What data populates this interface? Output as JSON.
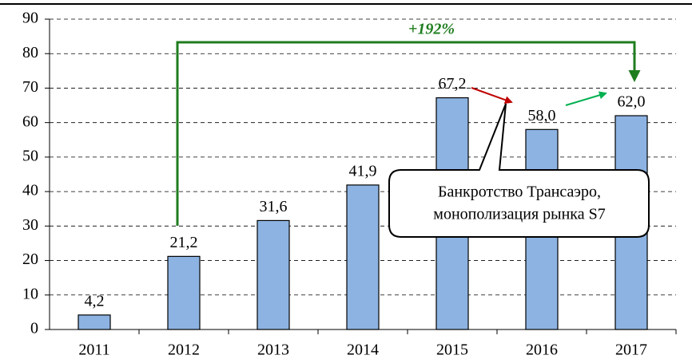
{
  "chart_data": {
    "type": "bar",
    "categories": [
      "2011",
      "2012",
      "2013",
      "2014",
      "2015",
      "2016",
      "2017"
    ],
    "values": [
      4.2,
      21.2,
      31.6,
      41.9,
      67.2,
      58.0,
      62.0
    ],
    "value_labels": [
      "4,2",
      "21,2",
      "31,6",
      "41,9",
      "67,2",
      "58,0",
      "62,0"
    ],
    "color": "#8db3e2",
    "ylim": [
      0,
      90
    ],
    "yticks": [
      0,
      10,
      20,
      30,
      40,
      50,
      60,
      70,
      80,
      90
    ],
    "grid": true,
    "annotations": {
      "growth": "+192%",
      "callout": [
        "Банкротство Трансаэро,",
        "монополизация рынка S7"
      ]
    }
  }
}
